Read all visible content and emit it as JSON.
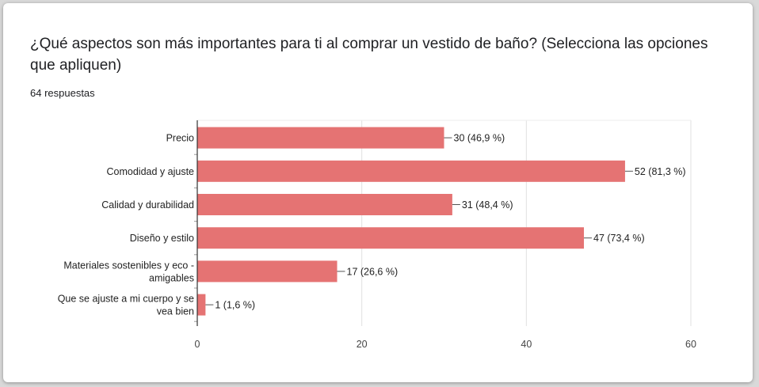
{
  "question": {
    "title": "¿Qué aspectos son más importantes para ti al comprar un vestido de baño? (Selecciona las opciones que apliquen)",
    "responses": "64 respuestas"
  },
  "chart_data": {
    "type": "bar",
    "orientation": "horizontal",
    "categories": [
      [
        "Precio"
      ],
      [
        "Comodidad y ajuste"
      ],
      [
        "Calidad y durabilidad"
      ],
      [
        "Diseño y estilo"
      ],
      [
        "Materiales sostenibles y eco -",
        "amigables"
      ],
      [
        "Que se ajuste a mi cuerpo y se",
        "vea bien"
      ]
    ],
    "values": [
      30,
      52,
      31,
      47,
      17,
      1
    ],
    "data_labels": [
      "30 (46,9 %)",
      "52 (81,3 %)",
      "31 (48,4 %)",
      "47 (73,4 %)",
      "17 (26,6 %)",
      "1 (1,6 %)"
    ],
    "xlim": [
      0,
      60
    ],
    "xticks": [
      0,
      20,
      40,
      60
    ],
    "bar_color": "#e57373",
    "grid": true
  }
}
